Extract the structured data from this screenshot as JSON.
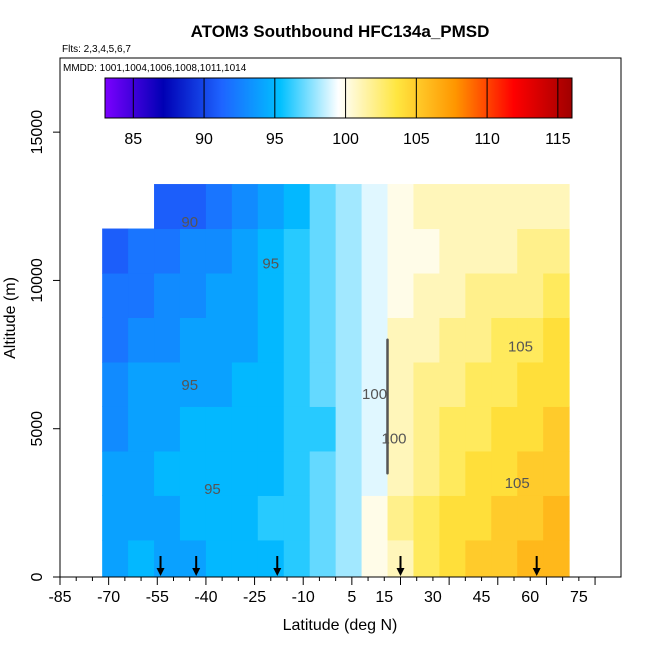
{
  "chart_data": {
    "type": "heatmap",
    "title": "ATOM3 Southbound HFC134a_PMSD",
    "annotations": {
      "flights": "Flts: 2,3,4,5,6,7",
      "dates": "MMDD: 1001,1004,1006,1008,1011,1014"
    },
    "xlabel": "Latitude (deg N)",
    "ylabel": "Altitude (m)",
    "xlim": [
      -85,
      88
    ],
    "ylim": [
      0,
      17500
    ],
    "x_ticks": [
      "-85",
      "-70",
      "-55",
      "-40",
      "-25",
      "-10",
      "5",
      "15",
      "30",
      "45",
      "60",
      "75"
    ],
    "y_ticks": [
      "0",
      "5000",
      "10000",
      "15000"
    ],
    "colorbar": {
      "range": [
        83,
        116
      ],
      "ticks": [
        "85",
        "90",
        "95",
        "100",
        "105",
        "110",
        "115"
      ],
      "colors": [
        "#7b00ff",
        "#0000b4",
        "#1e64ff",
        "#00c0ff",
        "#ffffff",
        "#ffe640",
        "#ff9600",
        "#ff0000",
        "#a00000"
      ]
    },
    "contour_levels": [
      90,
      95,
      100,
      105
    ],
    "contour_labels": [
      "90",
      "95",
      "95",
      "100",
      "100",
      "105",
      "105",
      "95"
    ],
    "profile_latitudes": [
      -54,
      -43,
      -18,
      20,
      62
    ],
    "lat_bins": [
      -68,
      -60,
      -52,
      -44,
      -36,
      -28,
      -20,
      -12,
      -4,
      4,
      12,
      20,
      28,
      36,
      44,
      52,
      60,
      68
    ],
    "alt_bins": [
      500,
      2000,
      3500,
      5000,
      6500,
      8000,
      9500,
      11000,
      12500
    ],
    "values": [
      [
        94,
        95,
        94,
        94,
        95,
        95,
        95,
        96,
        97,
        98,
        100,
        101,
        103,
        104,
        105,
        105,
        106,
        106
      ],
      [
        94,
        94,
        94,
        95,
        95,
        95,
        96,
        96,
        97,
        98,
        100,
        102,
        103,
        104,
        104,
        105,
        105,
        106
      ],
      [
        94,
        94,
        95,
        95,
        95,
        95,
        95,
        96,
        97,
        98,
        99,
        101,
        102,
        103,
        104,
        104,
        105,
        105
      ],
      [
        93,
        94,
        94,
        95,
        95,
        95,
        95,
        96,
        96,
        98,
        99,
        101,
        102,
        103,
        103,
        104,
        104,
        105
      ],
      [
        93,
        94,
        94,
        94,
        94,
        95,
        95,
        96,
        97,
        98,
        99,
        101,
        102,
        102,
        103,
        103,
        104,
        104
      ],
      [
        92,
        93,
        93,
        94,
        94,
        94,
        95,
        96,
        97,
        98,
        99,
        101,
        101,
        102,
        102,
        103,
        103,
        104
      ],
      [
        92,
        92,
        93,
        93,
        94,
        94,
        95,
        96,
        97,
        98,
        99,
        100,
        101,
        101,
        102,
        102,
        102,
        103
      ],
      [
        91,
        92,
        92,
        93,
        93,
        94,
        95,
        96,
        97,
        98,
        99,
        100,
        100,
        101,
        101,
        101,
        102,
        102
      ],
      [
        null,
        null,
        91,
        91,
        92,
        93,
        94,
        95,
        97,
        98,
        99,
        100,
        101,
        101,
        101,
        101,
        101,
        101
      ]
    ]
  }
}
